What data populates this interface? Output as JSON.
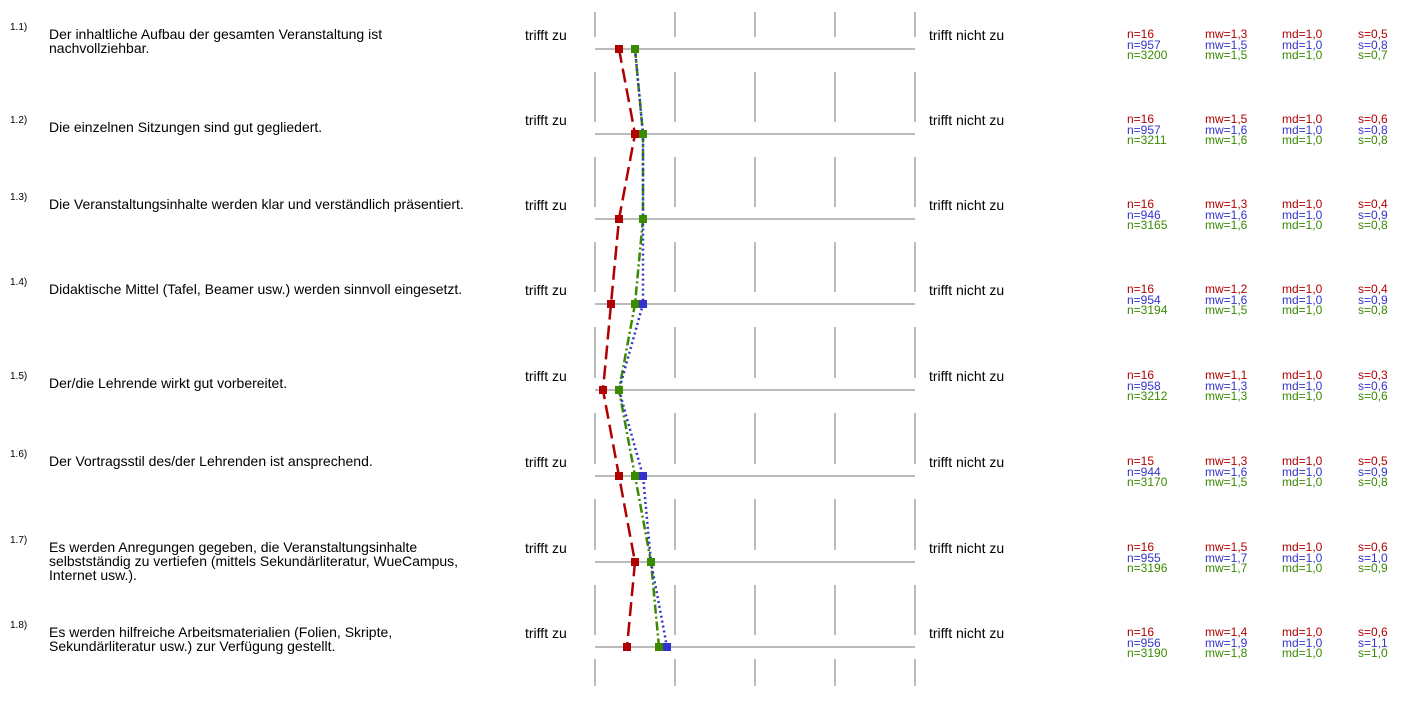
{
  "chart_data": {
    "type": "line",
    "orientation": "vertical-profile",
    "scale": [
      1,
      5
    ],
    "left_label": "trifft zu",
    "right_label": "trifft nicht zu",
    "series_colors": [
      "#b00000",
      "#3333cc",
      "#3a8a00"
    ],
    "series_styles": [
      "dashed",
      "dotted",
      "dash-dot"
    ],
    "series": [
      {
        "values": [
          1.3,
          1.5,
          1.3,
          1.2,
          1.1,
          1.3,
          1.5,
          1.4
        ]
      },
      {
        "values": [
          1.5,
          1.6,
          1.6,
          1.6,
          1.3,
          1.6,
          1.7,
          1.9
        ]
      },
      {
        "values": [
          1.5,
          1.6,
          1.6,
          1.5,
          1.3,
          1.5,
          1.7,
          1.8
        ]
      }
    ],
    "items": [
      {
        "num": "1.1)",
        "text": "Der inhaltliche Aufbau der gesamten Veranstaltung ist nachvollziehbar.",
        "stats": [
          [
            "n=16",
            "mw=1,3",
            "md=1,0",
            "s=0,5"
          ],
          [
            "n=957",
            "mw=1,5",
            "md=1,0",
            "s=0,8"
          ],
          [
            "n=3200",
            "mw=1,5",
            "md=1,0",
            "s=0,7"
          ]
        ]
      },
      {
        "num": "1.2)",
        "text": "Die einzelnen Sitzungen sind gut gegliedert.",
        "stats": [
          [
            "n=16",
            "mw=1,5",
            "md=1,0",
            "s=0,6"
          ],
          [
            "n=957",
            "mw=1,6",
            "md=1,0",
            "s=0,8"
          ],
          [
            "n=3211",
            "mw=1,6",
            "md=1,0",
            "s=0,8"
          ]
        ]
      },
      {
        "num": "1.3)",
        "text": "Die Veranstaltungsinhalte werden klar und verständlich präsentiert.",
        "stats": [
          [
            "n=16",
            "mw=1,3",
            "md=1,0",
            "s=0,4"
          ],
          [
            "n=946",
            "mw=1,6",
            "md=1,0",
            "s=0,9"
          ],
          [
            "n=3165",
            "mw=1,6",
            "md=1,0",
            "s=0,8"
          ]
        ]
      },
      {
        "num": "1.4)",
        "text": "Didaktische Mittel (Tafel, Beamer usw.) werden sinnvoll eingesetzt.",
        "stats": [
          [
            "n=16",
            "mw=1,2",
            "md=1,0",
            "s=0,4"
          ],
          [
            "n=954",
            "mw=1,6",
            "md=1,0",
            "s=0,9"
          ],
          [
            "n=3194",
            "mw=1,5",
            "md=1,0",
            "s=0,8"
          ]
        ]
      },
      {
        "num": "1.5)",
        "text": "Der/die Lehrende wirkt gut vorbereitet.",
        "stats": [
          [
            "n=16",
            "mw=1,1",
            "md=1,0",
            "s=0,3"
          ],
          [
            "n=958",
            "mw=1,3",
            "md=1,0",
            "s=0,6"
          ],
          [
            "n=3212",
            "mw=1,3",
            "md=1,0",
            "s=0,6"
          ]
        ]
      },
      {
        "num": "1.6)",
        "text": "Der Vortragsstil des/der Lehrenden ist ansprechend.",
        "stats": [
          [
            "n=15",
            "mw=1,3",
            "md=1,0",
            "s=0,5"
          ],
          [
            "n=944",
            "mw=1,6",
            "md=1,0",
            "s=0,9"
          ],
          [
            "n=3170",
            "mw=1,5",
            "md=1,0",
            "s=0,8"
          ]
        ]
      },
      {
        "num": "1.7)",
        "text": "Es werden Anregungen gegeben, die Veranstaltungsinhalte selbstständig zu vertiefen (mittels Sekundärliteratur, WueCampus, Internet usw.).",
        "stats": [
          [
            "n=16",
            "mw=1,5",
            "md=1,0",
            "s=0,6"
          ],
          [
            "n=955",
            "mw=1,7",
            "md=1,0",
            "s=1,0"
          ],
          [
            "n=3196",
            "mw=1,7",
            "md=1,0",
            "s=0,9"
          ]
        ]
      },
      {
        "num": "1.8)",
        "text": "Es werden hilfreiche Arbeitsmaterialien (Folien, Skripte, Sekundärliteratur usw.) zur Verfügung gestellt.",
        "stats": [
          [
            "n=16",
            "mw=1,4",
            "md=1,0",
            "s=0,6"
          ],
          [
            "n=956",
            "mw=1,9",
            "md=1,0",
            "s=1,1"
          ],
          [
            "n=3190",
            "mw=1,8",
            "md=1,0",
            "s=1,0"
          ]
        ]
      }
    ]
  }
}
